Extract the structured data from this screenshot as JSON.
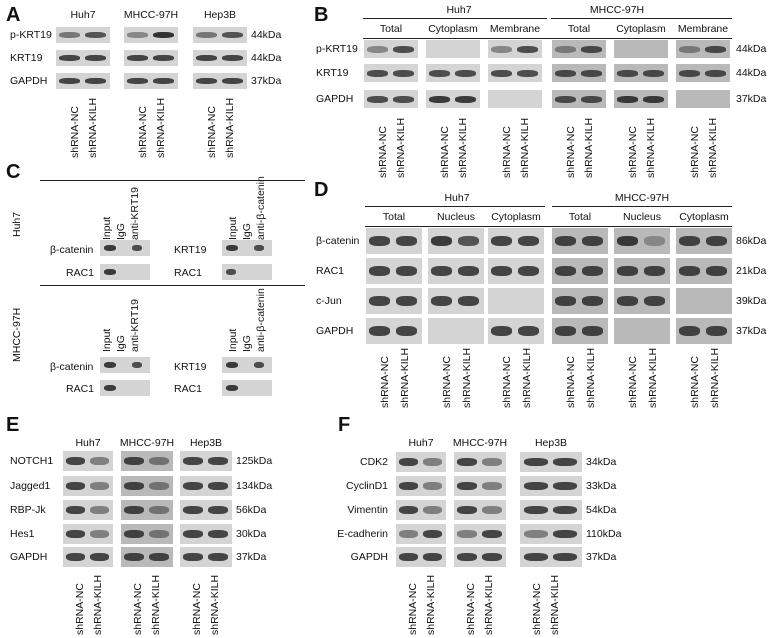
{
  "panels": {
    "A": {
      "letter": "A",
      "groups": [
        "Huh7",
        "MHCC-97H",
        "Hep3B"
      ],
      "rows": [
        "p-KRT19",
        "KRT19",
        "GAPDH"
      ],
      "sizes": [
        "44kDa",
        "44kDa",
        "37kDa"
      ],
      "lanes": [
        "shRNA-NC",
        "shRNA-KILH"
      ]
    },
    "B": {
      "letter": "B",
      "cells": [
        "Huh7",
        "MHCC-97H"
      ],
      "fractions": [
        "Total",
        "Cytoplasm",
        "Membrane"
      ],
      "rows": [
        "p-KRT19",
        "KRT19",
        "GAPDH"
      ],
      "sizes": [
        "44kDa",
        "44kDa",
        "37kDa"
      ],
      "lanes": [
        "shRNA-NC",
        "shRNA-KILH"
      ]
    },
    "C": {
      "letter": "C",
      "cells": [
        "Huh7",
        "MHCC-97H"
      ],
      "lanes_left": [
        "Input",
        "IgG",
        "anti-KRT19"
      ],
      "lanes_right": [
        "Input",
        "IgG",
        "anti-β-catenin"
      ],
      "rows_left": [
        "β-catenin",
        "RAC1"
      ],
      "rows_right": [
        "KRT19",
        "RAC1"
      ]
    },
    "D": {
      "letter": "D",
      "cells": [
        "Huh7",
        "MHCC-97H"
      ],
      "fractions": [
        "Total",
        "Nucleus",
        "Cytoplasm"
      ],
      "rows": [
        "β-catenin",
        "RAC1",
        "c-Jun",
        "GAPDH"
      ],
      "sizes": [
        "86kDa",
        "21kDa",
        "39kDa",
        "37kDa"
      ],
      "lanes": [
        "shRNA-NC",
        "shRNA-KILH"
      ]
    },
    "E": {
      "letter": "E",
      "groups": [
        "Huh7",
        "MHCC-97H",
        "Hep3B"
      ],
      "rows": [
        "NOTCH1",
        "Jagged1",
        "RBP-Jk",
        "Hes1",
        "GAPDH"
      ],
      "sizes": [
        "125kDa",
        "134kDa",
        "56kDa",
        "30kDa",
        "37kDa"
      ],
      "lanes": [
        "shRNA-NC",
        "shRNA-KILH"
      ]
    },
    "F": {
      "letter": "F",
      "groups": [
        "Huh7",
        "MHCC-97H",
        "Hep3B"
      ],
      "rows": [
        "CDK2",
        "CyclinD1",
        "Vimentin",
        "E-cadherin",
        "GAPDH"
      ],
      "sizes": [
        "34kDa",
        "33kDa",
        "54kDa",
        "110kDa",
        "37kDa"
      ],
      "lanes": [
        "shRNA-NC",
        "shRNA-KILH"
      ]
    }
  }
}
